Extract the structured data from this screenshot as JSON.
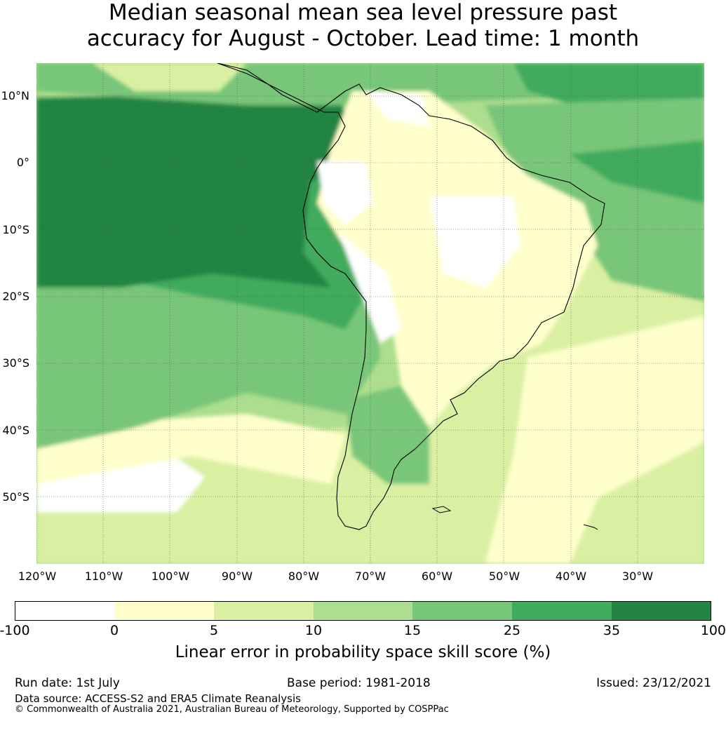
{
  "title": {
    "line1": "Median seasonal mean sea level pressure past",
    "line2": "accuracy for August - October. Lead time: 1 month"
  },
  "map": {
    "lat_labels": [
      "10°N",
      "0°",
      "10°S",
      "20°S",
      "30°S",
      "40°S",
      "50°S"
    ],
    "lon_labels": [
      "120°W",
      "110°W",
      "100°W",
      "90°W",
      "80°W",
      "70°W",
      "60°W",
      "50°W",
      "40°W",
      "30°W"
    ],
    "lon_range": [
      -120,
      -20
    ],
    "lat_range": [
      -60,
      15
    ]
  },
  "colorbar": {
    "ticks": [
      "-100",
      "0",
      "5",
      "10",
      "15",
      "25",
      "35",
      "100"
    ],
    "colors": [
      "#ffffff",
      "#ffffcc",
      "#d9f0a3",
      "#addd8e",
      "#78c679",
      "#41ab5d",
      "#238443"
    ],
    "label": "Linear error in probability space skill score (%)"
  },
  "footer": {
    "run_date": "Run date: 1st July",
    "base_period": "Base period: 1981-2018",
    "issued": "Issued: 23/12/2021",
    "data_source": "Data source: ACCESS-S2 and ERA5 Climate Reanalysis",
    "copyright": "© Commonwealth of Australia 2021, Australian Bureau of Meteorology, Supported by COSPPac"
  }
}
